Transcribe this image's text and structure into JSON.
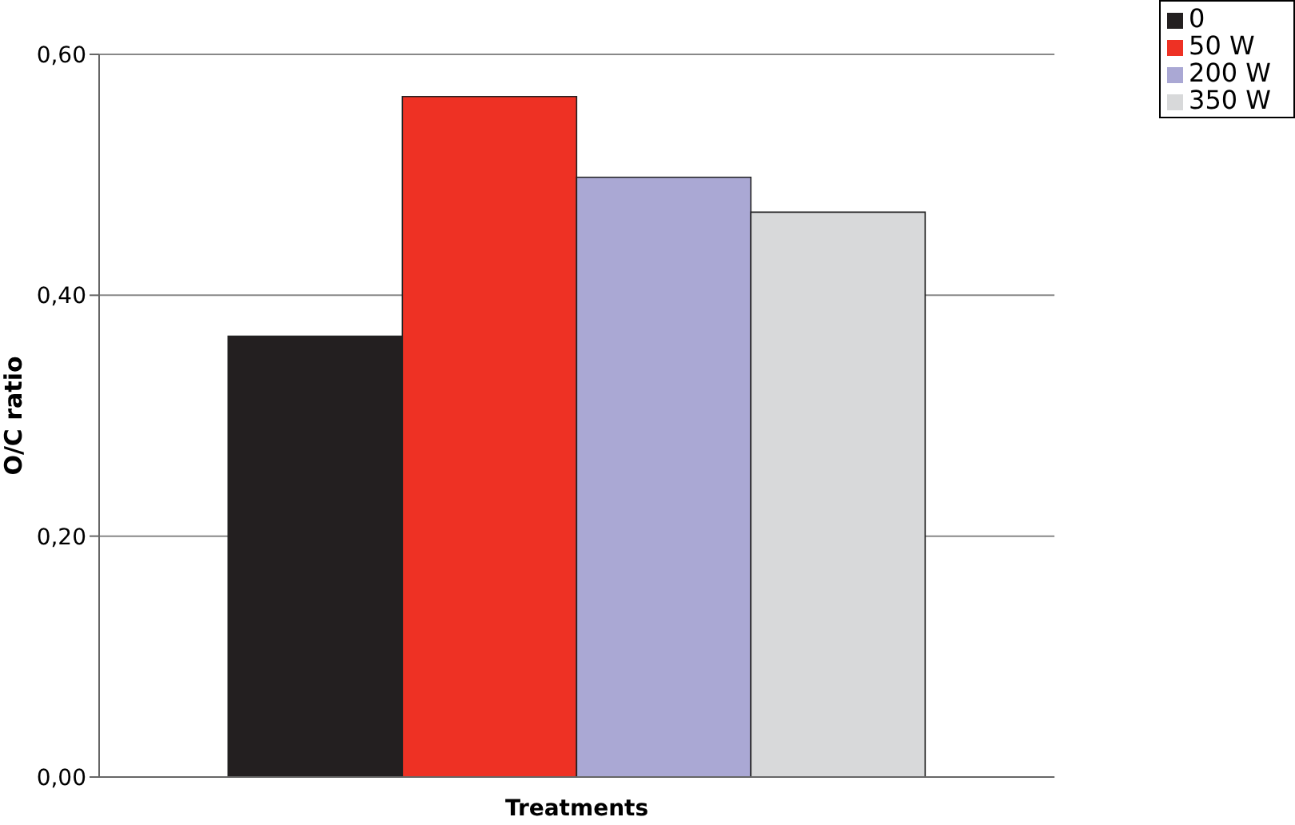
{
  "chart_data": {
    "type": "bar",
    "xlabel": "Treatments",
    "ylabel": "O/C  ratio",
    "categories": [
      null
    ],
    "series": [
      {
        "name": "0",
        "color": "#231f20",
        "values": [
          0.366
        ]
      },
      {
        "name": "50 W",
        "color": "#ee3124",
        "values": [
          0.565
        ]
      },
      {
        "name": "200 W",
        "color": "#aaa8d4",
        "values": [
          0.498
        ]
      },
      {
        "name": "350 W",
        "color": "#d8d9da",
        "values": [
          0.469
        ]
      }
    ],
    "ylim": [
      0,
      0.6
    ],
    "yticks": [
      {
        "value": 0,
        "label": "0,00"
      },
      {
        "value": 0.2,
        "label": "0,20"
      },
      {
        "value": 0.4,
        "label": "0,40"
      },
      {
        "value": 0.6,
        "label": "0,60"
      }
    ],
    "grid": "y",
    "legend": "top right"
  }
}
